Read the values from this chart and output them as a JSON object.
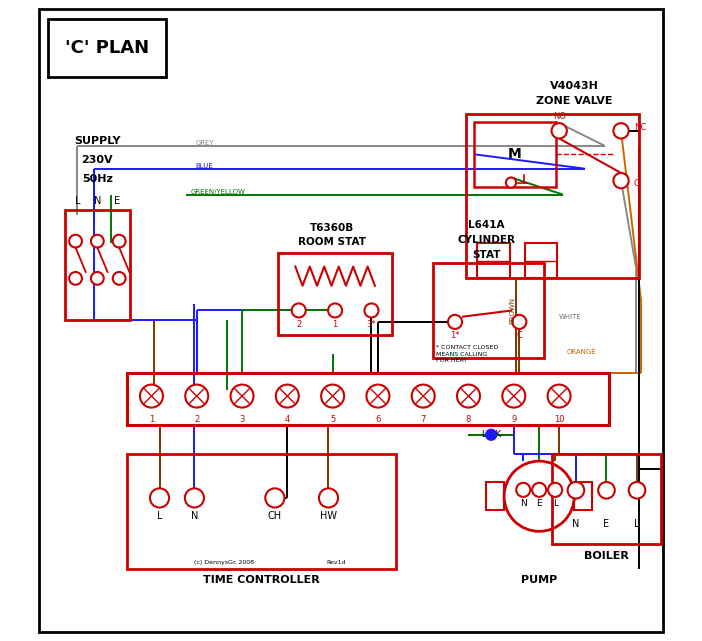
{
  "title": "'C' PLAN",
  "red": "#cc0000",
  "blue": "#1a1aff",
  "green": "#007700",
  "brown": "#7a3800",
  "grey": "#888888",
  "orange": "#cc6600",
  "black": "#000000",
  "white": "#ffffff",
  "terminal_labels": [
    "1",
    "2",
    "3",
    "4",
    "5",
    "6",
    "7",
    "8",
    "9",
    "10"
  ],
  "time_ctrl_label": "TIME CONTROLLER",
  "pump_label": "PUMP",
  "boiler_label": "BOILER",
  "footnote": "(c) DennysGc 2008",
  "revnote": "Rev1d"
}
